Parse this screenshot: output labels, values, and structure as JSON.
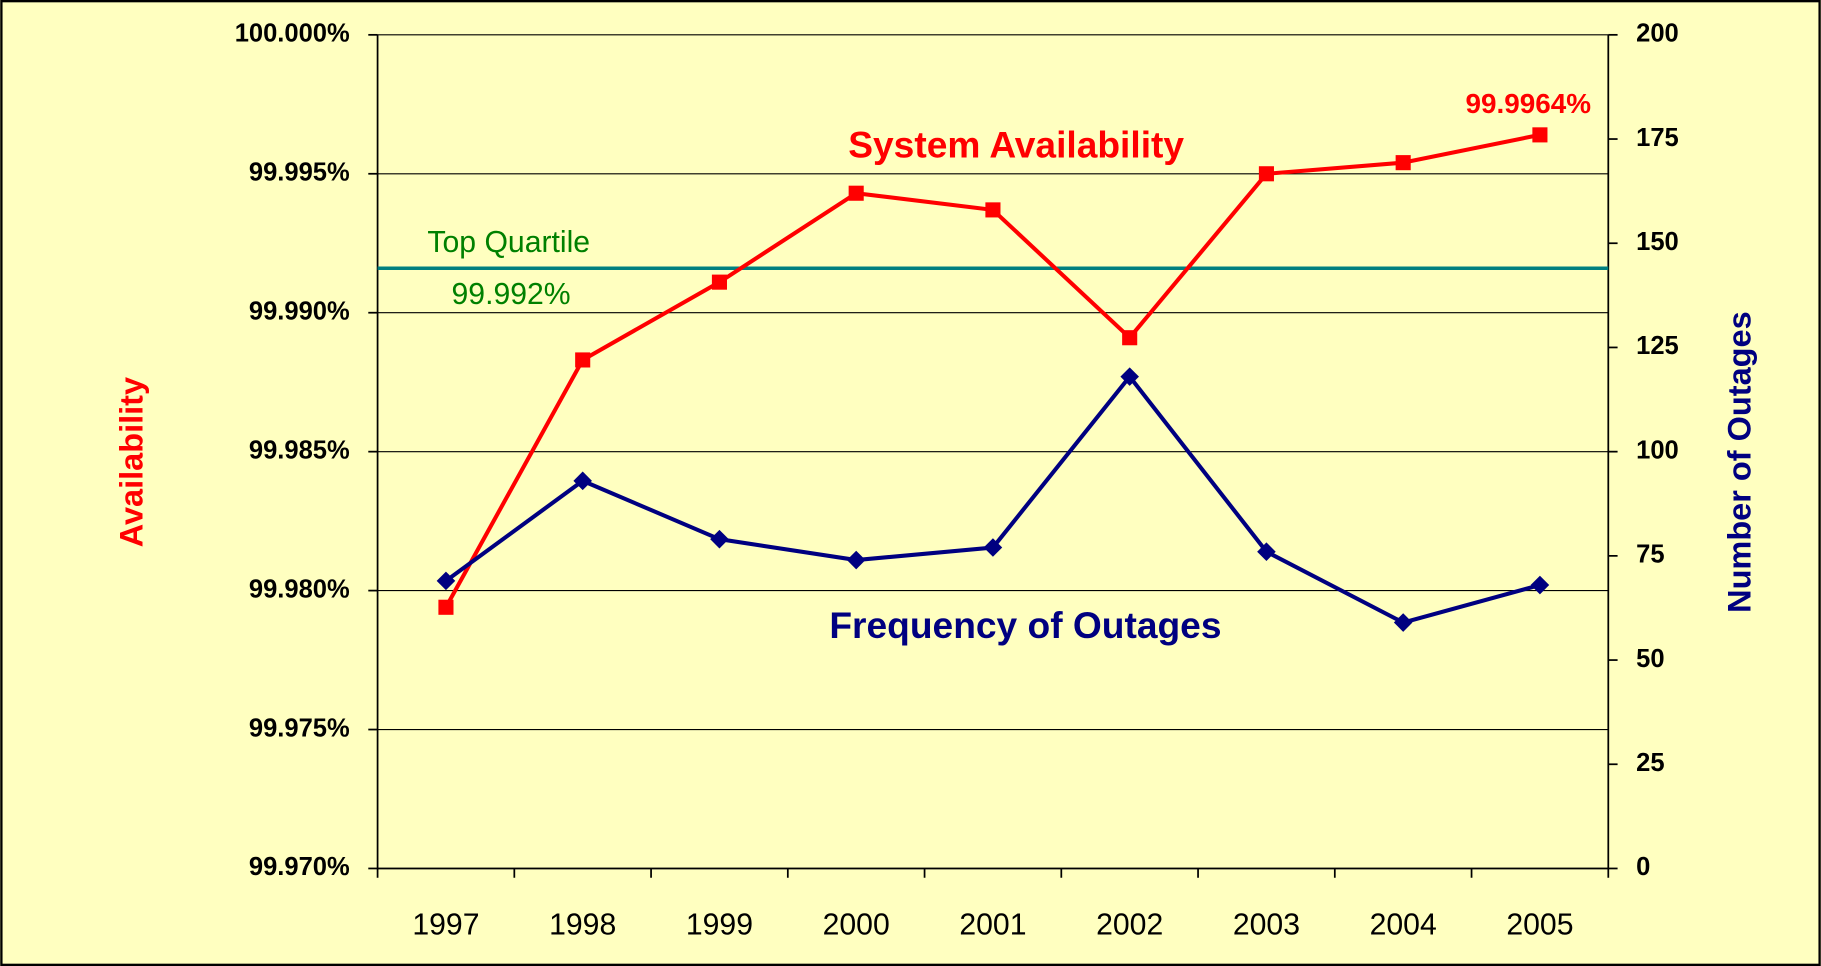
{
  "chart_data": {
    "type": "line",
    "categories": [
      "1997",
      "1998",
      "1999",
      "2000",
      "2001",
      "2002",
      "2003",
      "2004",
      "2005"
    ],
    "series": [
      {
        "name": "System Availability",
        "color": "#ff0000",
        "marker": "square",
        "values": [
          99.9794,
          99.9883,
          99.9911,
          99.9943,
          99.9937,
          99.9891,
          99.995,
          99.9954,
          99.9964
        ],
        "value_labels": [
          null,
          null,
          null,
          null,
          null,
          null,
          null,
          null,
          "99.9964%"
        ]
      },
      {
        "name": "Frequency of Outages",
        "color": "#000080",
        "marker": "diamond",
        "axis": "y2",
        "values": [
          69,
          93,
          79,
          74,
          77,
          118,
          76,
          59,
          68
        ]
      }
    ],
    "ylabel": "Availability",
    "y2label": "Number of Outages",
    "ylim": [
      99.97,
      100
    ],
    "yticks": [
      {
        "value": 99.97,
        "label": "99.970%"
      },
      {
        "value": 99.975,
        "label": "99.975%"
      },
      {
        "value": 99.98,
        "label": "99.980%"
      },
      {
        "value": 99.985,
        "label": "99.985%"
      },
      {
        "value": 99.99,
        "label": "99.990%"
      },
      {
        "value": 99.995,
        "label": "99.995%"
      },
      {
        "value": 100,
        "label": "100.000%"
      }
    ],
    "y2lim": [
      0,
      200
    ],
    "y2ticks": [
      0,
      25,
      50,
      75,
      100,
      125,
      150,
      175,
      200
    ],
    "grid": true,
    "reference_line": {
      "title": "Top Quartile",
      "value": 99.9916,
      "label": "99.992%",
      "color": "#008080",
      "text_color": "#008000"
    }
  }
}
